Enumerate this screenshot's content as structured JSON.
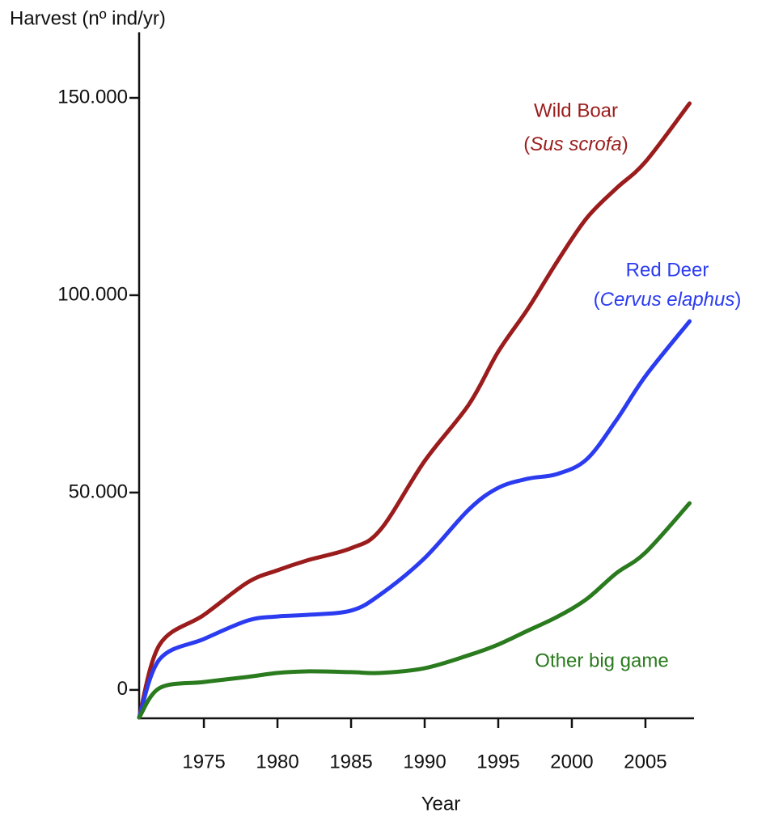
{
  "chart_data": {
    "type": "line",
    "y_label": "Harvest (nº ind/yr)",
    "x_label": "Year",
    "x": [
      1970.6,
      1972,
      1975,
      1978,
      1980,
      1982,
      1985,
      1987,
      1990,
      1993,
      1995,
      1997,
      1999,
      2001,
      2003,
      2005,
      2008
    ],
    "series": [
      {
        "name": "Wild Boar",
        "latin": [
          "(",
          "Sus scrofa",
          ")"
        ],
        "color": "#9b1c1c",
        "values": [
          -7000,
          11500,
          19000,
          27300,
          30300,
          32800,
          35900,
          40600,
          58000,
          72300,
          85700,
          96500,
          108500,
          119500,
          127000,
          133800,
          148600
        ]
      },
      {
        "name": "Red Deer",
        "latin": [
          "(",
          "Cervus elaphus",
          ")"
        ],
        "color": "#2b3cf0",
        "values": [
          -7000,
          7800,
          12900,
          17600,
          18600,
          19000,
          20100,
          24200,
          33400,
          45700,
          51200,
          53500,
          54700,
          58400,
          68200,
          79500,
          93400
        ]
      },
      {
        "name": "Other big game",
        "color": "#2a7a1e",
        "values": [
          -7000,
          500,
          2000,
          3300,
          4300,
          4700,
          4500,
          4300,
          5500,
          8800,
          11500,
          15000,
          18500,
          23000,
          29500,
          34800,
          47300
        ]
      }
    ],
    "xlim": [
      1970.6,
      2008.3
    ],
    "ylim": [
      -7200,
      166600
    ],
    "xticks": [
      1975,
      1980,
      1985,
      1990,
      1995,
      2000,
      2005
    ],
    "yticks": [
      0,
      {
        "value": 50000,
        "label": "50.000"
      },
      {
        "value": 100000,
        "label": "100.000"
      },
      {
        "value": 150000,
        "label": "150.000"
      }
    ],
    "grid": false
  }
}
